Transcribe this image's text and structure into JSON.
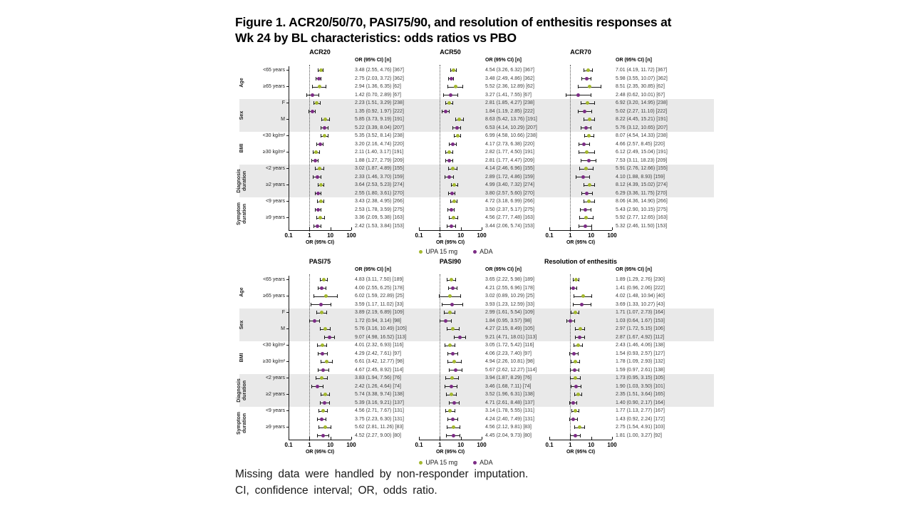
{
  "title": {
    "line1": "Figure 1. ACR20/50/70, PASI75/90, and resolution of enthesitis responses at",
    "line2": "Wk 24 by BL characteristics: odds ratios vs PBO"
  },
  "legend": {
    "upa_label": "UPA 15 mg",
    "ada_label": "ADA"
  },
  "colors": {
    "upa": "#a4b82f",
    "ada": "#7c2c85",
    "band": "#e9e9e9"
  },
  "footnotes": [
    "Missing data were handled by non-responder imputation.",
    "CI, confidence interval;  OR, odds ratio."
  ],
  "chart_data": {
    "type": "scatter",
    "subtype": "forest-plot",
    "x_scale": "log10",
    "x_ticks": [
      "0.1",
      "1",
      "10",
      "100"
    ],
    "x_range": [
      0.1,
      100
    ],
    "reference_line": 1,
    "xlabel": "OR (95% CI)",
    "value_header": "OR (95% CI) [n]",
    "series_order": [
      "UPA 15 mg",
      "ADA"
    ],
    "groups": [
      {
        "name": "Age",
        "shaded": false,
        "subgroups": [
          "<65 years",
          "≥65 years"
        ]
      },
      {
        "name": "Sex",
        "shaded": true,
        "subgroups": [
          "F",
          "M"
        ]
      },
      {
        "name": "BMI",
        "shaded": false,
        "subgroups": [
          "<30 kg/m²",
          "≥30 kg/m²"
        ]
      },
      {
        "name": "Diagnosis duration",
        "shaded": true,
        "subgroups": [
          "<2 years",
          "≥2 years"
        ]
      },
      {
        "name": "Symptom duration",
        "shaded": false,
        "subgroups": [
          "<9 years",
          "≥9 years"
        ]
      }
    ],
    "value_format": "OR (lo, hi) [n] — rows ordered: per group, per subgroup, UPA 15 mg then ADA",
    "panels": [
      {
        "title": "ACR20",
        "row": "top",
        "values": [
          [
            3.48,
            2.55,
            4.76,
            367
          ],
          [
            2.75,
            2.03,
            3.72,
            362
          ],
          [
            2.94,
            1.36,
            6.35,
            62
          ],
          [
            1.42,
            0.7,
            2.89,
            67
          ],
          [
            2.23,
            1.51,
            3.29,
            238
          ],
          [
            1.35,
            0.92,
            1.97,
            222
          ],
          [
            5.85,
            3.73,
            9.19,
            191
          ],
          [
            5.22,
            3.39,
            8.04,
            207
          ],
          [
            5.35,
            3.52,
            8.14,
            238
          ],
          [
            3.2,
            2.16,
            4.74,
            220
          ],
          [
            2.11,
            1.4,
            3.17,
            191
          ],
          [
            1.88,
            1.27,
            2.79,
            209
          ],
          [
            3.02,
            1.87,
            4.89,
            155
          ],
          [
            2.33,
            1.46,
            3.7,
            159
          ],
          [
            3.64,
            2.53,
            5.23,
            274
          ],
          [
            2.55,
            1.8,
            3.61,
            270
          ],
          [
            3.43,
            2.38,
            4.95,
            266
          ],
          [
            2.53,
            1.78,
            3.59,
            275
          ],
          [
            3.36,
            2.09,
            5.38,
            163
          ],
          [
            2.42,
            1.53,
            3.84,
            153
          ]
        ]
      },
      {
        "title": "ACR50",
        "row": "top",
        "values": [
          [
            4.54,
            3.26,
            6.32,
            367
          ],
          [
            3.48,
            2.49,
            4.86,
            362
          ],
          [
            5.52,
            2.36,
            12.89,
            62
          ],
          [
            3.27,
            1.41,
            7.55,
            67
          ],
          [
            2.81,
            1.85,
            4.27,
            238
          ],
          [
            1.84,
            1.19,
            2.85,
            222
          ],
          [
            8.63,
            5.42,
            13.76,
            191
          ],
          [
            6.53,
            4.14,
            10.29,
            207
          ],
          [
            6.99,
            4.58,
            10.66,
            238
          ],
          [
            4.17,
            2.73,
            6.38,
            220
          ],
          [
            2.82,
            1.77,
            4.5,
            191
          ],
          [
            2.81,
            1.77,
            4.47,
            209
          ],
          [
            4.14,
            2.46,
            6.96,
            155
          ],
          [
            2.89,
            1.72,
            4.86,
            159
          ],
          [
            4.99,
            3.4,
            7.32,
            274
          ],
          [
            3.8,
            2.57,
            5.6,
            270
          ],
          [
            4.72,
            3.18,
            6.99,
            266
          ],
          [
            3.5,
            2.37,
            5.17,
            275
          ],
          [
            4.56,
            2.77,
            7.48,
            163
          ],
          [
            3.44,
            2.06,
            5.74,
            153
          ]
        ]
      },
      {
        "title": "ACR70",
        "row": "top",
        "values": [
          [
            7.01,
            4.19,
            11.72,
            367
          ],
          [
            5.98,
            3.55,
            10.07,
            362
          ],
          [
            8.51,
            2.35,
            30.85,
            62
          ],
          [
            2.48,
            0.62,
            10.01,
            67
          ],
          [
            6.92,
            3.2,
            14.95,
            238
          ],
          [
            5.02,
            2.27,
            11.1,
            222
          ],
          [
            8.22,
            4.45,
            15.21,
            191
          ],
          [
            5.76,
            3.12,
            10.65,
            207
          ],
          [
            8.07,
            4.54,
            14.33,
            238
          ],
          [
            4.66,
            2.57,
            8.45,
            220
          ],
          [
            6.12,
            2.49,
            15.04,
            191
          ],
          [
            7.53,
            3.11,
            18.23,
            209
          ],
          [
            5.91,
            2.76,
            12.66,
            155
          ],
          [
            4.1,
            1.88,
            8.93,
            159
          ],
          [
            8.12,
            4.39,
            15.02,
            274
          ],
          [
            6.29,
            3.36,
            11.75,
            270
          ],
          [
            8.06,
            4.36,
            14.9,
            266
          ],
          [
            5.43,
            2.9,
            10.15,
            275
          ],
          [
            5.92,
            2.77,
            12.65,
            163
          ],
          [
            5.32,
            2.46,
            11.5,
            153
          ]
        ]
      },
      {
        "title": "PASI75",
        "row": "bottom",
        "values": [
          [
            4.83,
            3.11,
            7.5,
            189
          ],
          [
            4.0,
            2.55,
            6.25,
            178
          ],
          [
            6.02,
            1.59,
            22.89,
            25
          ],
          [
            3.59,
            1.17,
            11.02,
            33
          ],
          [
            3.89,
            2.19,
            6.89,
            109
          ],
          [
            1.72,
            0.94,
            3.14,
            98
          ],
          [
            5.76,
            3.16,
            10.49,
            105
          ],
          [
            9.07,
            4.98,
            16.52,
            113
          ],
          [
            4.01,
            2.32,
            6.93,
            116
          ],
          [
            4.29,
            2.42,
            7.61,
            97
          ],
          [
            6.61,
            3.42,
            12.77,
            98
          ],
          [
            4.67,
            2.45,
            8.92,
            114
          ],
          [
            3.83,
            1.94,
            7.56,
            76
          ],
          [
            2.42,
            1.26,
            4.64,
            74
          ],
          [
            5.74,
            3.38,
            9.74,
            138
          ],
          [
            5.39,
            3.16,
            9.21,
            137
          ],
          [
            4.56,
            2.71,
            7.67,
            131
          ],
          [
            3.75,
            2.23,
            6.3,
            131
          ],
          [
            5.62,
            2.81,
            11.26,
            83
          ],
          [
            4.52,
            2.27,
            9.0,
            80
          ]
        ]
      },
      {
        "title": "PASI90",
        "row": "bottom",
        "values": [
          [
            3.65,
            2.22,
            5.98,
            189
          ],
          [
            4.21,
            2.55,
            6.96,
            178
          ],
          [
            3.02,
            0.89,
            10.29,
            25
          ],
          [
            3.93,
            1.23,
            12.59,
            33
          ],
          [
            2.99,
            1.61,
            5.54,
            109
          ],
          [
            1.84,
            0.95,
            3.57,
            98
          ],
          [
            4.27,
            2.15,
            8.49,
            105
          ],
          [
            9.21,
            4.71,
            18.01,
            113
          ],
          [
            3.05,
            1.72,
            5.42,
            116
          ],
          [
            4.06,
            2.23,
            7.4,
            97
          ],
          [
            4.94,
            2.26,
            10.81,
            98
          ],
          [
            5.67,
            2.62,
            12.27,
            114
          ],
          [
            3.94,
            1.87,
            8.29,
            76
          ],
          [
            3.46,
            1.68,
            7.11,
            74
          ],
          [
            3.52,
            1.96,
            6.31,
            138
          ],
          [
            4.71,
            2.61,
            8.48,
            137
          ],
          [
            3.14,
            1.78,
            5.55,
            131
          ],
          [
            4.24,
            2.4,
            7.49,
            131
          ],
          [
            4.56,
            2.12,
            9.81,
            83
          ],
          [
            4.45,
            2.04,
            9.73,
            80
          ]
        ]
      },
      {
        "title": "Resolution of enthesitis",
        "row": "bottom",
        "values": [
          [
            1.89,
            1.29,
            2.76,
            230
          ],
          [
            1.41,
            0.96,
            2.06,
            222
          ],
          [
            4.02,
            1.48,
            10.94,
            40
          ],
          [
            3.69,
            1.33,
            10.27,
            43
          ],
          [
            1.71,
            1.07,
            2.73,
            164
          ],
          [
            1.03,
            0.64,
            1.67,
            153
          ],
          [
            2.97,
            1.72,
            5.15,
            106
          ],
          [
            2.87,
            1.67,
            4.92,
            112
          ],
          [
            2.43,
            1.46,
            4.06,
            138
          ],
          [
            1.54,
            0.93,
            2.57,
            127
          ],
          [
            1.78,
            1.09,
            2.93,
            132
          ],
          [
            1.59,
            0.97,
            2.61,
            138
          ],
          [
            1.73,
            0.95,
            3.15,
            105
          ],
          [
            1.9,
            1.03,
            3.5,
            101
          ],
          [
            2.35,
            1.51,
            3.64,
            165
          ],
          [
            1.4,
            0.9,
            2.17,
            164
          ],
          [
            1.77,
            1.13,
            2.77,
            167
          ],
          [
            1.43,
            0.92,
            2.24,
            172
          ],
          [
            2.75,
            1.54,
            4.91,
            103
          ],
          [
            1.81,
            1.0,
            3.27,
            92
          ]
        ]
      }
    ]
  }
}
